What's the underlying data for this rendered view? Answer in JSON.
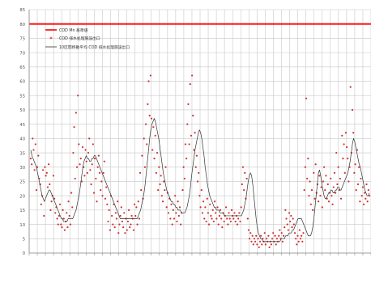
{
  "chart_data": {
    "type": "line",
    "title": "",
    "xlabel": "",
    "ylabel": "",
    "ylim": [
      0,
      85
    ],
    "y_ticks": [
      0,
      5,
      10,
      15,
      20,
      25,
      30,
      35,
      40,
      45,
      50,
      55,
      60,
      65,
      70,
      75,
      80,
      85
    ],
    "x_tick_count": 42,
    "grid": true,
    "legend_position": "top-left",
    "legend": [
      {
        "label": "COD Mn 基準値",
        "kind": "line",
        "color": "#ff0000"
      },
      {
        "label": "COD 排水処理施設出口",
        "kind": "marker",
        "color": "#e06060"
      },
      {
        "label": "10区間移動平均 COD 排水処理施設出口",
        "kind": "line",
        "color": "#333333"
      }
    ],
    "threshold": {
      "value": 80,
      "color": "#ff0000"
    },
    "series_points": {
      "color": "#d23030",
      "values": [
        33,
        31,
        40,
        36,
        29,
        38,
        22,
        30,
        34,
        26,
        24,
        17,
        20,
        29,
        13,
        30,
        27,
        28,
        23,
        31,
        24,
        15,
        18,
        20,
        27,
        19,
        14,
        16,
        12,
        10,
        13,
        17,
        10,
        9,
        15,
        12,
        8,
        11,
        14,
        9,
        18,
        13,
        10,
        21,
        16,
        35,
        44,
        26,
        49,
        30,
        55,
        38,
        31,
        33,
        25,
        37,
        30,
        27,
        36,
        32,
        28,
        35,
        40,
        29,
        24,
        31,
        38,
        21,
        33,
        26,
        18,
        30,
        34,
        28,
        22,
        25,
        20,
        28,
        32,
        19,
        23,
        17,
        11,
        15,
        8,
        20,
        13,
        10,
        17,
        9,
        14,
        12,
        18,
        7,
        10,
        13,
        16,
        11,
        9,
        14,
        7,
        12,
        8,
        11,
        15,
        9,
        10,
        13,
        12,
        8,
        17,
        13,
        16,
        10,
        18,
        12,
        28,
        22,
        34,
        19,
        40,
        30,
        45,
        38,
        52,
        60,
        48,
        62,
        47,
        36,
        44,
        33,
        41,
        28,
        35,
        22,
        30,
        24,
        27,
        20,
        18,
        25,
        22,
        30,
        16,
        21,
        14,
        19,
        12,
        17,
        10,
        15,
        12,
        20,
        14,
        11,
        18,
        13,
        16,
        10,
        14,
        22,
        30,
        26,
        38,
        33,
        45,
        52,
        38,
        59,
        41,
        62,
        48,
        36,
        42,
        30,
        34,
        25,
        28,
        20,
        16,
        22,
        14,
        18,
        12,
        16,
        11,
        19,
        14,
        10,
        17,
        13,
        12,
        15,
        11,
        18,
        14,
        12,
        16,
        10,
        13,
        15,
        12,
        9,
        14,
        11,
        13,
        16,
        12,
        10,
        14,
        12,
        11,
        15,
        13,
        12,
        14,
        11,
        13,
        10,
        12,
        14,
        11,
        16,
        24,
        30,
        22,
        28,
        19,
        26,
        12,
        8,
        5,
        7,
        4,
        6,
        3,
        5,
        4,
        6,
        3,
        5,
        2,
        4,
        6,
        3,
        5,
        4,
        7,
        3,
        5,
        4,
        6,
        2,
        4,
        3,
        5,
        7,
        4,
        6,
        3,
        5,
        4,
        6,
        8,
        5,
        7,
        4,
        6,
        9,
        15,
        12,
        10,
        8,
        14,
        11,
        13,
        9,
        12,
        10,
        7,
        5,
        3,
        6,
        4,
        8,
        5,
        6,
        4,
        7,
        22,
        30,
        54,
        26,
        33,
        20,
        25,
        17,
        22,
        15,
        28,
        19,
        31,
        21,
        24,
        18,
        27,
        20,
        23,
        16,
        25,
        30,
        22,
        27,
        19,
        24,
        18,
        21,
        26,
        20,
        17,
        23,
        28,
        21,
        35,
        24,
        30,
        22,
        26,
        19,
        41,
        33,
        38,
        28,
        42,
        37,
        33,
        25,
        30,
        58,
        35,
        50,
        42,
        28,
        31,
        22,
        36,
        24,
        30,
        18,
        26,
        20,
        23,
        17,
        21,
        19,
        24,
        18,
        22,
        20
      ]
    },
    "series_avg": {
      "color": "#333333",
      "values": [
        36,
        34,
        33,
        32,
        31,
        30,
        28,
        26,
        24,
        22,
        20,
        19,
        18,
        19,
        20,
        21,
        22,
        22,
        21,
        20,
        19,
        18,
        17,
        16,
        15,
        14,
        13,
        12,
        12,
        11,
        11,
        11,
        11,
        12,
        12,
        12,
        12,
        12,
        13,
        14,
        15,
        17,
        19,
        21,
        24,
        27,
        30,
        32,
        33,
        34,
        33,
        33,
        32,
        32,
        33,
        33,
        34,
        34,
        33,
        32,
        31,
        30,
        29,
        28,
        27,
        26,
        25,
        24,
        23,
        22,
        21,
        20,
        19,
        18,
        17,
        16,
        15,
        14,
        13,
        12,
        12,
        12,
        12,
        12,
        12,
        12,
        12,
        12,
        12,
        12,
        12,
        12,
        12,
        12,
        12,
        13,
        14,
        15,
        17,
        19,
        21,
        24,
        28,
        32,
        36,
        40,
        43,
        45,
        46,
        47,
        46,
        44,
        42,
        40,
        37,
        34,
        31,
        28,
        26,
        24,
        22,
        21,
        20,
        19,
        18,
        18,
        17,
        17,
        16,
        16,
        15,
        15,
        15,
        14,
        14,
        14,
        14,
        15,
        16,
        18,
        20,
        23,
        27,
        30,
        33,
        36,
        38,
        40,
        42,
        43,
        42,
        40,
        37,
        34,
        30,
        27,
        24,
        22,
        20,
        19,
        18,
        17,
        16,
        16,
        15,
        15,
        15,
        14,
        14,
        14,
        14,
        13,
        13,
        13,
        13,
        13,
        13,
        13,
        13,
        13,
        13,
        13,
        13,
        13,
        13,
        13,
        13,
        14,
        15,
        17,
        19,
        22,
        25,
        27,
        28,
        27,
        24,
        20,
        16,
        12,
        9,
        7,
        6,
        5,
        5,
        4,
        4,
        4,
        4,
        4,
        4,
        4,
        4,
        4,
        4,
        4,
        4,
        4,
        4,
        4,
        4,
        5,
        5,
        5,
        5,
        6,
        6,
        6,
        7,
        7,
        7,
        8,
        8,
        9,
        10,
        11,
        12,
        12,
        12,
        12,
        11,
        10,
        9,
        8,
        7,
        6,
        6,
        6,
        7,
        9,
        12,
        16,
        20,
        24,
        28,
        29,
        27,
        24,
        22,
        20,
        19,
        19,
        20,
        21,
        21,
        22,
        22,
        21,
        21,
        22,
        22,
        23,
        23,
        22,
        22,
        23,
        24,
        25,
        26,
        27,
        28,
        30,
        32,
        35,
        38,
        40,
        39,
        37,
        35,
        33,
        31,
        30,
        28,
        26,
        24,
        22,
        21,
        20,
        20,
        21
      ]
    }
  }
}
